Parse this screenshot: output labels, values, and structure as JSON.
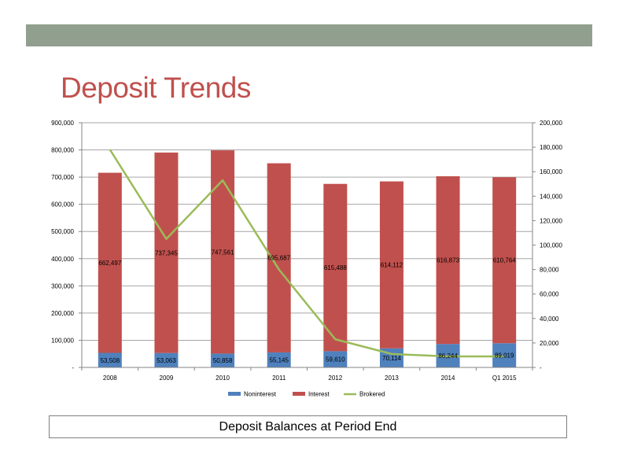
{
  "slide": {
    "title": "Deposit Trends",
    "caption": "Deposit Balances at Period End"
  },
  "colors": {
    "top_bar": "#919f8f",
    "title": "#c0504d",
    "noninterest": "#4f81bd",
    "interest": "#c0504d",
    "brokered": "#9bbb59"
  },
  "chart_data": {
    "type": "bar",
    "stacked": true,
    "categories": [
      "2008",
      "2009",
      "2010",
      "2011",
      "2012",
      "2013",
      "2014",
      "Q1 2015"
    ],
    "series": [
      {
        "name": "Noninterest",
        "type": "bar",
        "axis": "left",
        "values": [
          53508,
          53063,
          50858,
          55145,
          59610,
          70114,
          86244,
          89019
        ],
        "labels": [
          "53,508",
          "53,063",
          "50,858",
          "55,145",
          "59,610",
          "70,114",
          "86,244",
          "89,019"
        ]
      },
      {
        "name": "Interest",
        "type": "bar",
        "axis": "left",
        "values": [
          662497,
          737345,
          747561,
          695687,
          615488,
          614112,
          616873,
          610764
        ],
        "labels": [
          "662,497",
          "737,345",
          "747,561",
          "695,687",
          "615,488",
          "614,112",
          "616,873",
          "610,764"
        ]
      },
      {
        "name": "Brokered",
        "type": "line",
        "axis": "right",
        "values": [
          178000,
          105000,
          153000,
          80000,
          23000,
          11000,
          9000,
          9000
        ]
      }
    ],
    "y_left": {
      "range": [
        0,
        900000
      ],
      "ticks": [
        0,
        100000,
        200000,
        300000,
        400000,
        500000,
        600000,
        700000,
        800000,
        900000
      ],
      "tick_labels": [
        "-",
        "100,000",
        "200,000",
        "300,000",
        "400,000",
        "500,000",
        "600,000",
        "700,000",
        "800,000",
        "900,000"
      ]
    },
    "y_right": {
      "range": [
        0,
        200000
      ],
      "ticks": [
        0,
        20000,
        40000,
        60000,
        80000,
        100000,
        120000,
        140000,
        160000,
        180000,
        200000
      ],
      "tick_labels": [
        "-",
        "20,000",
        "40,000",
        "60,000",
        "80,000",
        "100,000",
        "120,000",
        "140,000",
        "160,000",
        "180,000",
        "200,000"
      ]
    },
    "grid": true,
    "legend": "bottom"
  }
}
